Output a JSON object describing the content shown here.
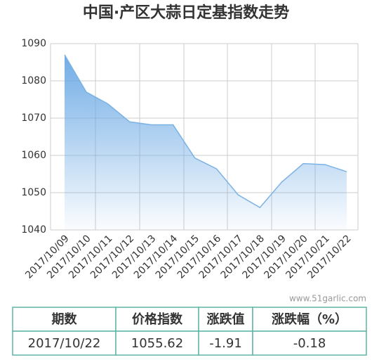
{
  "chart_data": {
    "type": "area",
    "title": "中国·产区大蒜日定基指数走势",
    "categories": [
      "2017/10/09",
      "2017/10/10",
      "2017/10/11",
      "2017/10/12",
      "2017/10/13",
      "2017/10/14",
      "2017/10/15",
      "2017/10/16",
      "2017/10/17",
      "2017/10/18",
      "2017/10/19",
      "2017/10/20",
      "2017/10/21",
      "2017/10/22"
    ],
    "series": [
      {
        "name": "价格指数",
        "color": "#7ab2e4",
        "values": [
          1087,
          1077,
          1073.8,
          1069,
          1068.2,
          1068.2,
          1059.3,
          1056.4,
          1049.4,
          1046,
          1052.8,
          1057.8,
          1057.53,
          1055.62
        ]
      }
    ],
    "ylim": [
      1040,
      1090
    ],
    "yticks": [
      1040,
      1050,
      1060,
      1070,
      1080,
      1090
    ],
    "grid": true
  },
  "watermark": "www.51garlic.com",
  "table": {
    "header": [
      "期数",
      "价格指数",
      "涨跌值",
      "涨跌幅（%）"
    ],
    "rows": [
      [
        "2017/10/22",
        "1055.62",
        "-1.91",
        "-0.18"
      ]
    ]
  }
}
